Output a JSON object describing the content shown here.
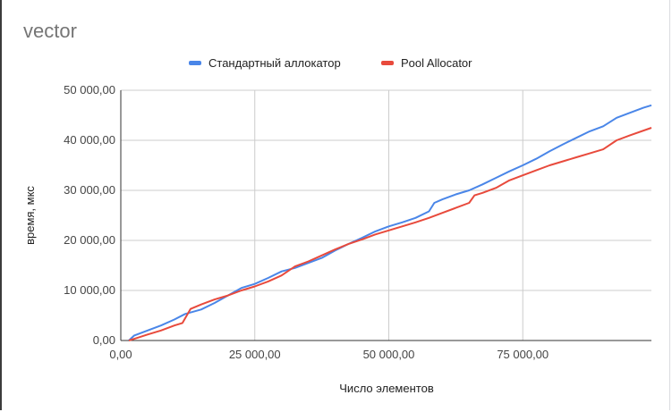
{
  "chart_data": {
    "type": "line",
    "title": "vector",
    "xlabel": "Число элементов",
    "ylabel": "время, мкс",
    "xlim": [
      0,
      99000
    ],
    "ylim": [
      0,
      50000
    ],
    "x_ticks": [
      0,
      25000,
      50000,
      75000
    ],
    "x_tick_labels": [
      "0,00",
      "25 000,00",
      "50 000,00",
      "75 000,00"
    ],
    "y_ticks": [
      0,
      10000,
      20000,
      30000,
      40000,
      50000
    ],
    "y_tick_labels": [
      "0,00",
      "10 000,00",
      "20 000,00",
      "30 000,00",
      "40 000,00",
      "50 000,00"
    ],
    "grid": true,
    "legend_position": "top",
    "series": [
      {
        "name": "Стандартный аллокатор",
        "color": "#4a86e8",
        "points": [
          [
            1500,
            0
          ],
          [
            2500,
            1000
          ],
          [
            5000,
            2000
          ],
          [
            7500,
            3000
          ],
          [
            10000,
            4200
          ],
          [
            12000,
            5300
          ],
          [
            15000,
            6200
          ],
          [
            17500,
            7500
          ],
          [
            20000,
            9000
          ],
          [
            22500,
            10500
          ],
          [
            25000,
            11300
          ],
          [
            27500,
            12500
          ],
          [
            30000,
            13800
          ],
          [
            32500,
            14500
          ],
          [
            35000,
            15500
          ],
          [
            37500,
            16500
          ],
          [
            40000,
            18000
          ],
          [
            42500,
            19300
          ],
          [
            45000,
            20500
          ],
          [
            47500,
            21800
          ],
          [
            50000,
            22800
          ],
          [
            52500,
            23600
          ],
          [
            55000,
            24500
          ],
          [
            57500,
            25800
          ],
          [
            58500,
            27500
          ],
          [
            60000,
            28200
          ],
          [
            62500,
            29200
          ],
          [
            65000,
            30000
          ],
          [
            67500,
            31200
          ],
          [
            70000,
            32500
          ],
          [
            72500,
            33800
          ],
          [
            75000,
            35000
          ],
          [
            77500,
            36300
          ],
          [
            80000,
            37800
          ],
          [
            82500,
            39200
          ],
          [
            85000,
            40500
          ],
          [
            87500,
            41800
          ],
          [
            90000,
            42800
          ],
          [
            92500,
            44500
          ],
          [
            95000,
            45500
          ],
          [
            97500,
            46500
          ],
          [
            99000,
            47000
          ]
        ]
      },
      {
        "name": "Pool Allocator",
        "color": "#e84a3c",
        "points": [
          [
            1500,
            0
          ],
          [
            3000,
            500
          ],
          [
            5000,
            1200
          ],
          [
            7500,
            2000
          ],
          [
            10000,
            3000
          ],
          [
            11500,
            3500
          ],
          [
            13000,
            6300
          ],
          [
            15000,
            7200
          ],
          [
            17500,
            8200
          ],
          [
            20000,
            9000
          ],
          [
            22500,
            10000
          ],
          [
            25000,
            10800
          ],
          [
            27500,
            11800
          ],
          [
            30000,
            13000
          ],
          [
            32500,
            14800
          ],
          [
            35000,
            15800
          ],
          [
            37500,
            17000
          ],
          [
            40000,
            18200
          ],
          [
            42500,
            19300
          ],
          [
            45000,
            20200
          ],
          [
            47500,
            21200
          ],
          [
            50000,
            22000
          ],
          [
            52500,
            22800
          ],
          [
            55000,
            23600
          ],
          [
            57500,
            24500
          ],
          [
            60000,
            25500
          ],
          [
            62500,
            26500
          ],
          [
            65000,
            27500
          ],
          [
            66000,
            29000
          ],
          [
            67500,
            29500
          ],
          [
            70000,
            30500
          ],
          [
            72500,
            32000
          ],
          [
            75000,
            33000
          ],
          [
            77500,
            34000
          ],
          [
            80000,
            35000
          ],
          [
            82500,
            35800
          ],
          [
            85000,
            36600
          ],
          [
            87500,
            37400
          ],
          [
            90000,
            38200
          ],
          [
            92500,
            40000
          ],
          [
            95000,
            41000
          ],
          [
            99000,
            42500
          ]
        ]
      }
    ]
  }
}
